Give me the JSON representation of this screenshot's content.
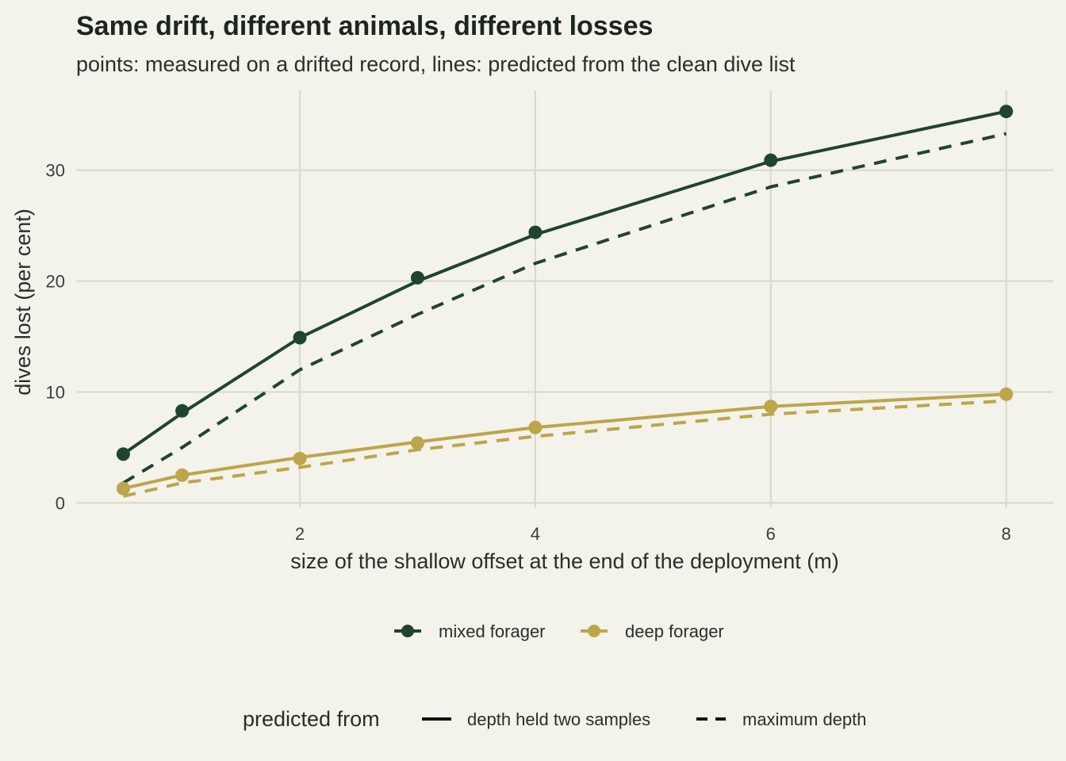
{
  "chart_data": {
    "type": "line",
    "title": "Same drift, different animals, different losses",
    "subtitle": "points: measured on a drifted record, lines: predicted from the clean dive list",
    "xlabel": "size of the shallow offset at the end of the deployment (m)",
    "ylabel": "dives lost (per cent)",
    "xlim": [
      0.1,
      8.4
    ],
    "ylim": [
      -0.4,
      37.2
    ],
    "x_ticks": [
      2,
      4,
      6,
      8
    ],
    "y_ticks": [
      0,
      10,
      20,
      30
    ],
    "x_tick_labels": [
      "2",
      "4",
      "6",
      "8"
    ],
    "y_tick_labels": [
      "0",
      "10",
      "20",
      "30"
    ],
    "grid": true,
    "series": [
      {
        "name": "mixed forager",
        "color": "#1f4430",
        "points": {
          "x": [
            0.5,
            1,
            2,
            3,
            4,
            6,
            8
          ],
          "y": [
            4.4,
            8.3,
            14.9,
            20.3,
            24.4,
            30.9,
            35.3
          ]
        },
        "line_depth_held": {
          "x": [
            0.5,
            1,
            2,
            3,
            4,
            6,
            8
          ],
          "y": [
            4.4,
            8.1,
            14.9,
            20.0,
            24.2,
            30.8,
            35.3
          ]
        },
        "line_max_depth": {
          "x": [
            0.5,
            1,
            2,
            3,
            4,
            6,
            8
          ],
          "y": [
            1.8,
            5.0,
            12.0,
            17.0,
            21.6,
            28.5,
            33.3
          ]
        }
      },
      {
        "name": "deep forager",
        "color": "#bda54a",
        "points": {
          "x": [
            0.5,
            1,
            2,
            3,
            4,
            6,
            8
          ],
          "y": [
            1.3,
            2.5,
            4.0,
            5.4,
            6.8,
            8.7,
            9.8
          ]
        },
        "line_depth_held": {
          "x": [
            0.5,
            1,
            2,
            3,
            4,
            6,
            8
          ],
          "y": [
            1.3,
            2.5,
            4.1,
            5.5,
            6.8,
            8.7,
            9.8
          ]
        },
        "line_max_depth": {
          "x": [
            0.5,
            1,
            2,
            3,
            4,
            6,
            8
          ],
          "y": [
            0.6,
            1.8,
            3.2,
            4.8,
            6.0,
            8.0,
            9.2
          ]
        }
      }
    ],
    "legend": {
      "placement": "bottom",
      "color_entries": [
        "mixed forager",
        "deep forager"
      ],
      "linetype_title": "predicted from",
      "linetype_entries": [
        "depth held two samples",
        "maximum depth"
      ]
    }
  }
}
